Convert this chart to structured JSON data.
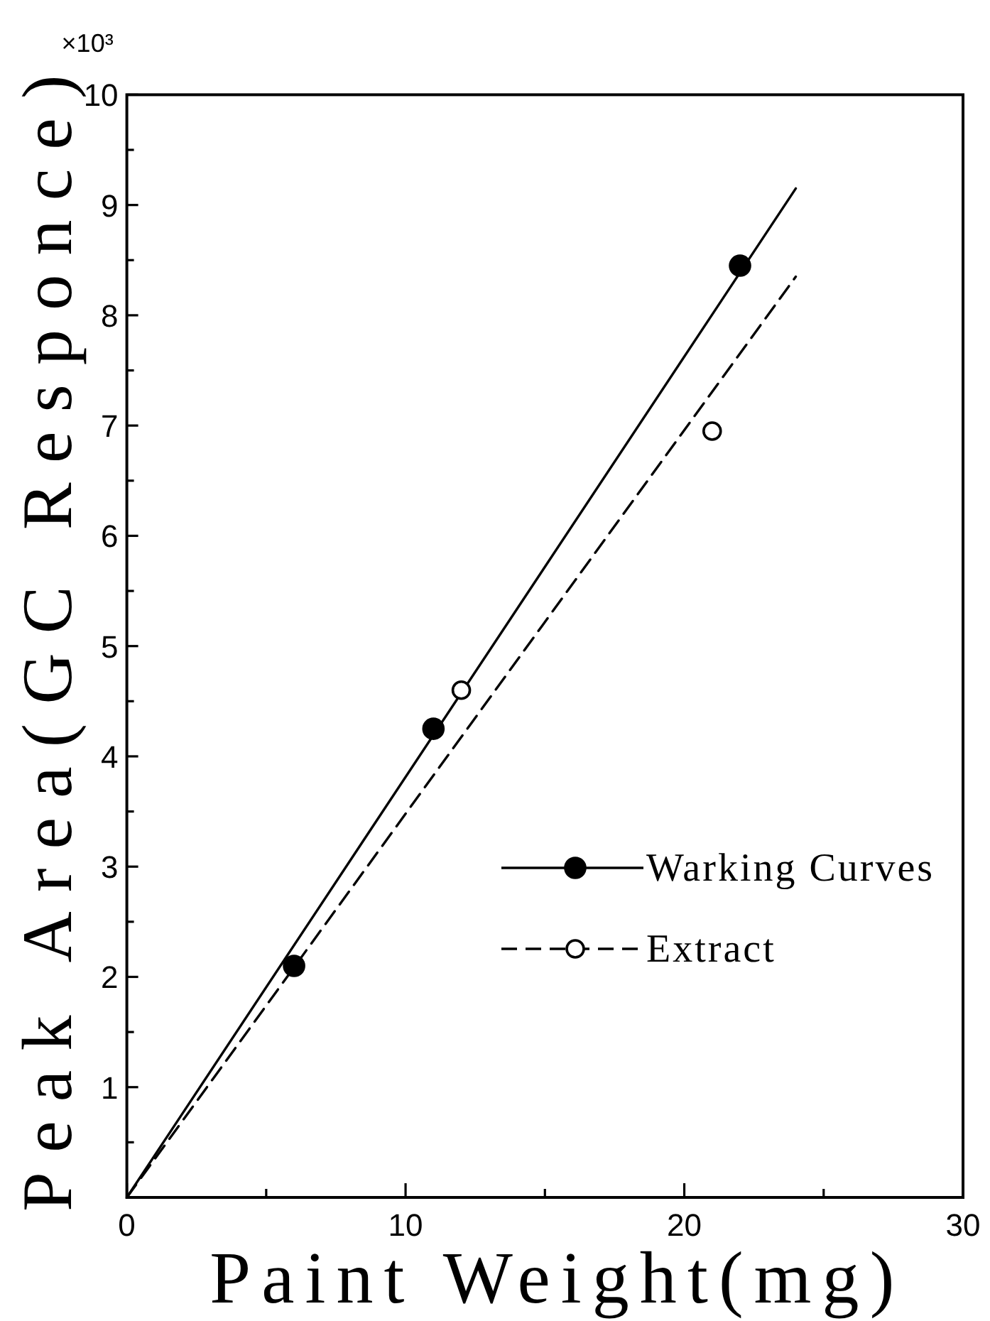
{
  "chart_data": {
    "type": "scatter",
    "xlabel": "Paint Weight(mg)",
    "ylabel": "Peak Area(GC Responce)",
    "annotations": [
      "×10³"
    ],
    "xlim": [
      0,
      30
    ],
    "xticks": [
      0,
      {
        "value": 5,
        "label": null
      },
      10,
      {
        "value": 15,
        "label": null
      },
      20,
      {
        "value": 25,
        "label": null
      },
      30
    ],
    "ylim": [
      0,
      10
    ],
    "yticks": [
      {
        "value": 0,
        "label": null
      },
      {
        "value": 0.5,
        "label": null
      },
      1,
      {
        "value": 1.5,
        "label": null
      },
      2,
      {
        "value": 2.5,
        "label": null
      },
      3,
      {
        "value": 3.5,
        "label": null
      },
      4,
      {
        "value": 4.5,
        "label": null
      },
      5,
      {
        "value": 5.5,
        "label": null
      },
      6,
      {
        "value": 6.5,
        "label": null
      },
      7,
      {
        "value": 7.5,
        "label": null
      },
      8,
      {
        "value": 8.5,
        "label": null
      },
      9,
      {
        "value": 9.5,
        "label": null
      },
      10
    ],
    "series": [
      {
        "name": "Warking Curves",
        "type": "scatter",
        "x": [
          6,
          11,
          22
        ],
        "values": [
          2.1,
          4.25,
          8.45
        ],
        "color": "#000000",
        "marker": "circle",
        "line_style": "solid"
      },
      {
        "name": "Extract",
        "type": "scatter",
        "x": [
          12,
          21
        ],
        "values": [
          4.6,
          6.95
        ],
        "color": "#000000",
        "colors": [
          "#ffffff",
          "#ffffff"
        ],
        "marker": "circle",
        "line_style": "dashed"
      },
      {
        "type": "line",
        "x": [
          0,
          24
        ],
        "values": [
          0,
          9.15
        ],
        "color": "#000000",
        "line_style": "solid"
      },
      {
        "type": "line",
        "x": [
          0,
          24
        ],
        "values": [
          0,
          8.35
        ],
        "color": "#000000",
        "line_style": "dashed"
      }
    ],
    "legend": "right"
  }
}
